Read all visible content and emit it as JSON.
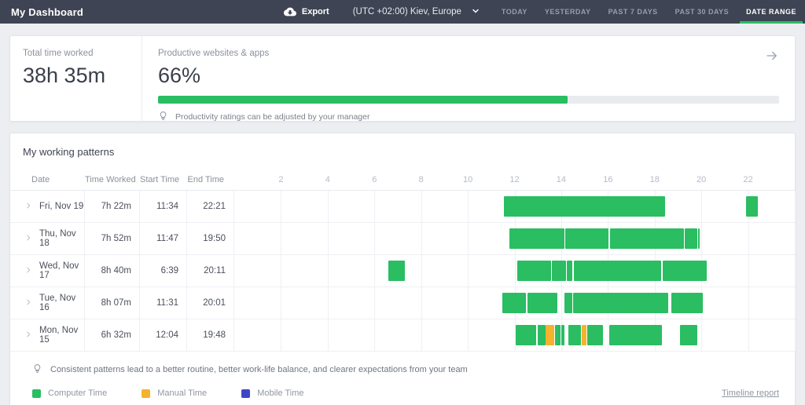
{
  "header": {
    "title": "My Dashboard",
    "export_label": "Export",
    "timezone": "(UTC +02:00) Kiev, Europe",
    "nav": [
      {
        "label": "TODAY",
        "active": false
      },
      {
        "label": "YESTERDAY",
        "active": false
      },
      {
        "label": "PAST 7 DAYS",
        "active": false
      },
      {
        "label": "PAST 30 DAYS",
        "active": false
      },
      {
        "label": "DATE RANGE",
        "active": true
      }
    ]
  },
  "summary": {
    "time_label": "Total time worked",
    "time_value": "38h 35m",
    "productive_label": "Productive websites & apps",
    "productive_value": "66%",
    "productive_percent": 66,
    "note": "Productivity ratings can be adjusted by your manager"
  },
  "patterns": {
    "title": "My working patterns",
    "columns": [
      "Date",
      "Time Worked",
      "Start Time",
      "End Time"
    ],
    "hours": [
      2,
      4,
      6,
      8,
      10,
      12,
      14,
      16,
      18,
      20,
      22
    ],
    "hours_range": [
      0,
      24
    ],
    "rows": [
      {
        "date": "Fri, Nov 19",
        "worked": "7h 22m",
        "start": "11:34",
        "end": "22:21",
        "segments": [
          {
            "start": 11.53,
            "end": 18.46,
            "type": "computer"
          },
          {
            "start": 21.9,
            "end": 22.42,
            "type": "computer"
          }
        ]
      },
      {
        "date": "Thu, Nov 18",
        "worked": "7h 52m",
        "start": "11:47",
        "end": "19:50",
        "segments": [
          {
            "start": 11.78,
            "end": 14.14,
            "type": "computer"
          },
          {
            "start": 14.18,
            "end": 16.01,
            "type": "computer"
          },
          {
            "start": 16.09,
            "end": 19.26,
            "type": "computer"
          },
          {
            "start": 19.29,
            "end": 19.81,
            "type": "computer"
          },
          {
            "start": 19.86,
            "end": 19.92,
            "type": "computer"
          }
        ]
      },
      {
        "date": "Wed, Nov 17",
        "worked": "8h 40m",
        "start": "6:39",
        "end": "20:11",
        "segments": [
          {
            "start": 6.6,
            "end": 7.31,
            "type": "computer"
          },
          {
            "start": 12.12,
            "end": 13.57,
            "type": "computer"
          },
          {
            "start": 13.6,
            "end": 14.2,
            "type": "computer"
          },
          {
            "start": 14.24,
            "end": 14.49,
            "type": "computer"
          },
          {
            "start": 14.54,
            "end": 18.29,
            "type": "computer"
          },
          {
            "start": 18.34,
            "end": 20.23,
            "type": "computer"
          }
        ]
      },
      {
        "date": "Tue, Nov 16",
        "worked": "8h 07m",
        "start": "11:31",
        "end": "20:01",
        "segments": [
          {
            "start": 11.48,
            "end": 12.48,
            "type": "computer"
          },
          {
            "start": 12.54,
            "end": 13.84,
            "type": "computer"
          },
          {
            "start": 14.14,
            "end": 14.46,
            "type": "computer"
          },
          {
            "start": 14.51,
            "end": 18.59,
            "type": "computer"
          },
          {
            "start": 18.72,
            "end": 20.06,
            "type": "computer"
          }
        ]
      },
      {
        "date": "Mon, Nov 15",
        "worked": "6h 32m",
        "start": "12:04",
        "end": "19:48",
        "segments": [
          {
            "start": 12.06,
            "end": 12.94,
            "type": "computer"
          },
          {
            "start": 12.98,
            "end": 13.33,
            "type": "computer"
          },
          {
            "start": 13.34,
            "end": 13.7,
            "type": "manual"
          },
          {
            "start": 13.72,
            "end": 13.98,
            "type": "computer"
          },
          {
            "start": 14.01,
            "end": 14.14,
            "type": "computer"
          },
          {
            "start": 14.31,
            "end": 14.84,
            "type": "computer"
          },
          {
            "start": 14.87,
            "end": 15.09,
            "type": "manual"
          },
          {
            "start": 15.11,
            "end": 15.79,
            "type": "computer"
          },
          {
            "start": 16.07,
            "end": 18.31,
            "type": "computer"
          },
          {
            "start": 19.09,
            "end": 19.81,
            "type": "computer"
          }
        ]
      }
    ],
    "note": "Consistent patterns lead to a better routine, better work-life balance, and clearer expectations from your team",
    "legend": [
      {
        "label": "Computer Time",
        "type": "computer",
        "color": "#2abd62"
      },
      {
        "label": "Manual Time",
        "type": "manual",
        "color": "#f3b32c"
      },
      {
        "label": "Mobile Time",
        "type": "mobile",
        "color": "#3e46c8"
      }
    ],
    "link": "Timeline report"
  },
  "colors": {
    "accent_green": "#2abd62",
    "manual_orange": "#f3b32c",
    "mobile_blue": "#3e46c8",
    "topbar_bg": "#3f4454"
  }
}
